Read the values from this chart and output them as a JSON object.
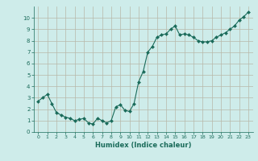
{
  "x": [
    0,
    0.5,
    1,
    1.5,
    2,
    2.5,
    3,
    3.5,
    4,
    4.5,
    5,
    5.5,
    6,
    6.5,
    7,
    7.5,
    8,
    8.5,
    9,
    9.5,
    10,
    10.5,
    11,
    11.5,
    12,
    12.5,
    13,
    13.5,
    14,
    14.5,
    15,
    15.5,
    16,
    16.5,
    17,
    17.5,
    18,
    18.5,
    19,
    19.5,
    20,
    20.5,
    21,
    21.5,
    22,
    22.5,
    23
  ],
  "y": [
    2.7,
    3.0,
    3.3,
    2.5,
    1.7,
    1.5,
    1.3,
    1.2,
    1.0,
    1.1,
    1.2,
    0.8,
    0.7,
    1.2,
    1.0,
    0.8,
    1.0,
    2.2,
    2.4,
    1.9,
    1.8,
    2.5,
    4.4,
    5.3,
    7.0,
    7.5,
    8.3,
    8.5,
    8.6,
    9.0,
    9.3,
    8.5,
    8.6,
    8.5,
    8.3,
    8.0,
    7.9,
    7.9,
    8.0,
    8.3,
    8.5,
    8.7,
    9.0,
    9.3,
    9.8,
    10.1,
    10.5
  ],
  "line_color": "#1a6b5a",
  "marker": "D",
  "marker_size": 2.0,
  "bg_color": "#ceecea",
  "grid_color": "#b8b8a8",
  "tick_label_color": "#1a6b5a",
  "xlabel": "Humidex (Indice chaleur)",
  "xlabel_color": "#1a6b5a",
  "xlim": [
    -0.5,
    23.5
  ],
  "ylim": [
    0,
    11
  ],
  "yticks": [
    0,
    1,
    2,
    3,
    4,
    5,
    6,
    7,
    8,
    9,
    10
  ],
  "xticks": [
    0,
    1,
    2,
    3,
    4,
    5,
    6,
    7,
    8,
    9,
    10,
    11,
    12,
    13,
    14,
    15,
    16,
    17,
    18,
    19,
    20,
    21,
    22,
    23
  ]
}
